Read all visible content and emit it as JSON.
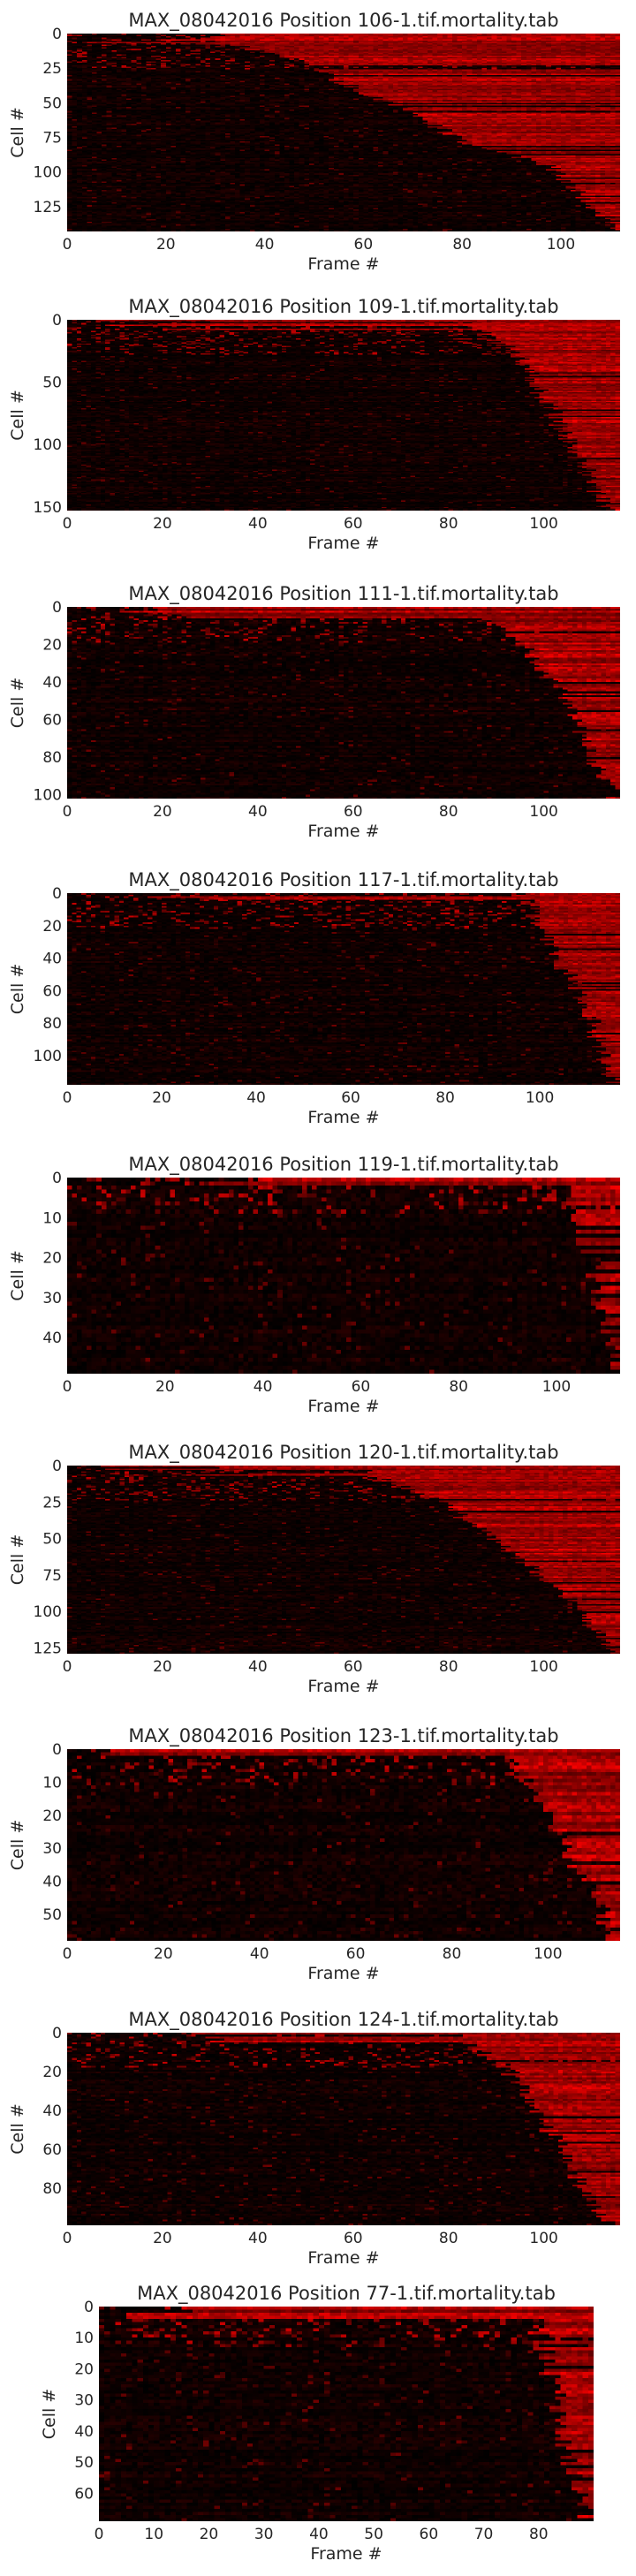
{
  "figure": {
    "background": "#ffffff",
    "cell_color_low": "#000000",
    "cell_color_high": "#ff0000"
  },
  "chart_data": [
    {
      "type": "heatmap",
      "title": "MAX_08042016 Position 106-1.tif.mortality.tab",
      "xlabel": "Frame #",
      "ylabel": "Cell #",
      "n_frames": 112,
      "n_cells": 143,
      "xlim": [
        0,
        112
      ],
      "ylim": [
        143,
        0
      ],
      "xticks": [
        0,
        20,
        40,
        60,
        80,
        100
      ],
      "yticks": [
        0,
        25,
        50,
        75,
        100,
        125
      ],
      "grid": false,
      "colormap": "black-red",
      "seed": 106,
      "death_curve": [
        [
          0,
          0.22
        ],
        [
          0.12,
          0.4
        ],
        [
          0.4,
          0.62
        ],
        [
          0.55,
          0.72
        ],
        [
          0.68,
          0.88
        ],
        [
          1.0,
          0.99
        ]
      ],
      "dead_fraction": 0.93
    },
    {
      "type": "heatmap",
      "title": "MAX_08042016 Position 109-1.tif.mortality.tab",
      "xlabel": "Frame #",
      "ylabel": "Cell #",
      "n_frames": 116,
      "n_cells": 153,
      "xlim": [
        0,
        116
      ],
      "ylim": [
        153,
        0
      ],
      "xticks": [
        0,
        20,
        40,
        60,
        80,
        100
      ],
      "yticks": [
        0,
        50,
        100,
        150
      ],
      "grid": false,
      "colormap": "black-red",
      "seed": 109,
      "death_curve": [
        [
          0,
          0.72
        ],
        [
          0.2,
          0.82
        ],
        [
          0.5,
          0.88
        ],
        [
          0.8,
          0.94
        ],
        [
          1.0,
          0.98
        ]
      ],
      "dead_fraction": 0.95
    },
    {
      "type": "heatmap",
      "title": "MAX_08042016 Position 111-1.tif.mortality.tab",
      "xlabel": "Frame #",
      "ylabel": "Cell #",
      "n_frames": 116,
      "n_cells": 102,
      "xlim": [
        0,
        116
      ],
      "ylim": [
        102,
        0
      ],
      "xticks": [
        0,
        20,
        40,
        60,
        80,
        100
      ],
      "yticks": [
        0,
        20,
        40,
        60,
        80,
        100
      ],
      "grid": false,
      "colormap": "black-red",
      "seed": 111,
      "death_curve": [
        [
          0,
          0.72
        ],
        [
          0.2,
          0.83
        ],
        [
          0.5,
          0.9
        ],
        [
          0.8,
          0.95
        ],
        [
          1.0,
          0.99
        ]
      ],
      "dead_fraction": 0.92
    },
    {
      "type": "heatmap",
      "title": "MAX_08042016 Position 117-1.tif.mortality.tab",
      "xlabel": "Frame #",
      "ylabel": "Cell #",
      "n_frames": 117,
      "n_cells": 118,
      "xlim": [
        0,
        117
      ],
      "ylim": [
        118,
        0
      ],
      "xticks": [
        0,
        20,
        40,
        60,
        80,
        100
      ],
      "yticks": [
        0,
        20,
        40,
        60,
        80,
        100
      ],
      "grid": false,
      "colormap": "black-red",
      "seed": 117,
      "death_curve": [
        [
          0,
          0.82
        ],
        [
          0.3,
          0.88
        ],
        [
          0.6,
          0.94
        ],
        [
          1.0,
          0.99
        ]
      ],
      "dead_fraction": 0.92
    },
    {
      "type": "heatmap",
      "title": "MAX_08042016 Position 119-1.tif.mortality.tab",
      "xlabel": "Frame #",
      "ylabel": "Cell #",
      "n_frames": 113,
      "n_cells": 49,
      "xlim": [
        0,
        113
      ],
      "ylim": [
        49,
        0
      ],
      "xticks": [
        0,
        20,
        40,
        60,
        80,
        100
      ],
      "yticks": [
        0,
        10,
        20,
        30,
        40
      ],
      "grid": false,
      "colormap": "black-red",
      "seed": 119,
      "death_curve": [
        [
          0,
          0.9
        ],
        [
          0.5,
          0.95
        ],
        [
          1.0,
          0.99
        ]
      ],
      "dead_fraction": 0.6
    },
    {
      "type": "heatmap",
      "title": "MAX_08042016 Position 120-1.tif.mortality.tab",
      "xlabel": "Frame #",
      "ylabel": "Cell #",
      "n_frames": 116,
      "n_cells": 129,
      "xlim": [
        0,
        116
      ],
      "ylim": [
        129,
        0
      ],
      "xticks": [
        0,
        20,
        40,
        60,
        80,
        100
      ],
      "yticks": [
        0,
        25,
        50,
        75,
        100,
        125
      ],
      "grid": false,
      "colormap": "black-red",
      "seed": 120,
      "death_curve": [
        [
          0,
          0.52
        ],
        [
          0.2,
          0.68
        ],
        [
          0.4,
          0.78
        ],
        [
          0.6,
          0.86
        ],
        [
          0.8,
          0.93
        ],
        [
          1.0,
          0.99
        ]
      ],
      "dead_fraction": 0.9
    },
    {
      "type": "heatmap",
      "title": "MAX_08042016 Position 123-1.tif.mortality.tab",
      "xlabel": "Frame #",
      "ylabel": "Cell #",
      "n_frames": 115,
      "n_cells": 58,
      "xlim": [
        0,
        115
      ],
      "ylim": [
        58,
        0
      ],
      "xticks": [
        0,
        20,
        40,
        60,
        80,
        100
      ],
      "yticks": [
        0,
        10,
        20,
        30,
        40,
        50
      ],
      "grid": false,
      "colormap": "black-red",
      "seed": 123,
      "death_curve": [
        [
          0,
          0.8
        ],
        [
          0.4,
          0.88
        ],
        [
          0.7,
          0.94
        ],
        [
          1.0,
          0.99
        ]
      ],
      "dead_fraction": 0.88
    },
    {
      "type": "heatmap",
      "title": "MAX_08042016 Position 124-1.tif.mortality.tab",
      "xlabel": "Frame #",
      "ylabel": "Cell #",
      "n_frames": 116,
      "n_cells": 99,
      "xlim": [
        0,
        116
      ],
      "ylim": [
        99,
        0
      ],
      "xticks": [
        0,
        20,
        40,
        60,
        80,
        100
      ],
      "yticks": [
        0,
        20,
        40,
        60,
        80
      ],
      "grid": false,
      "colormap": "black-red",
      "seed": 124,
      "death_curve": [
        [
          0,
          0.7
        ],
        [
          0.2,
          0.8
        ],
        [
          0.5,
          0.87
        ],
        [
          0.8,
          0.93
        ],
        [
          1.0,
          0.98
        ]
      ],
      "dead_fraction": 0.92
    },
    {
      "type": "heatmap",
      "title": "MAX_08042016 Position 77-1.tif.mortality.tab",
      "xlabel": "Frame #",
      "ylabel": "Cell #",
      "n_frames": 90,
      "n_cells": 69,
      "xlim": [
        0,
        90
      ],
      "ylim": [
        69,
        0
      ],
      "xticks": [
        0,
        10,
        20,
        30,
        40,
        50,
        60,
        70,
        80
      ],
      "yticks": [
        0,
        10,
        20,
        30,
        40,
        50,
        60
      ],
      "grid": false,
      "colormap": "black-red",
      "seed": 77,
      "death_curve": [
        [
          0,
          0.88
        ],
        [
          0.5,
          0.93
        ],
        [
          1.0,
          0.98
        ]
      ],
      "dead_fraction": 0.9
    }
  ]
}
